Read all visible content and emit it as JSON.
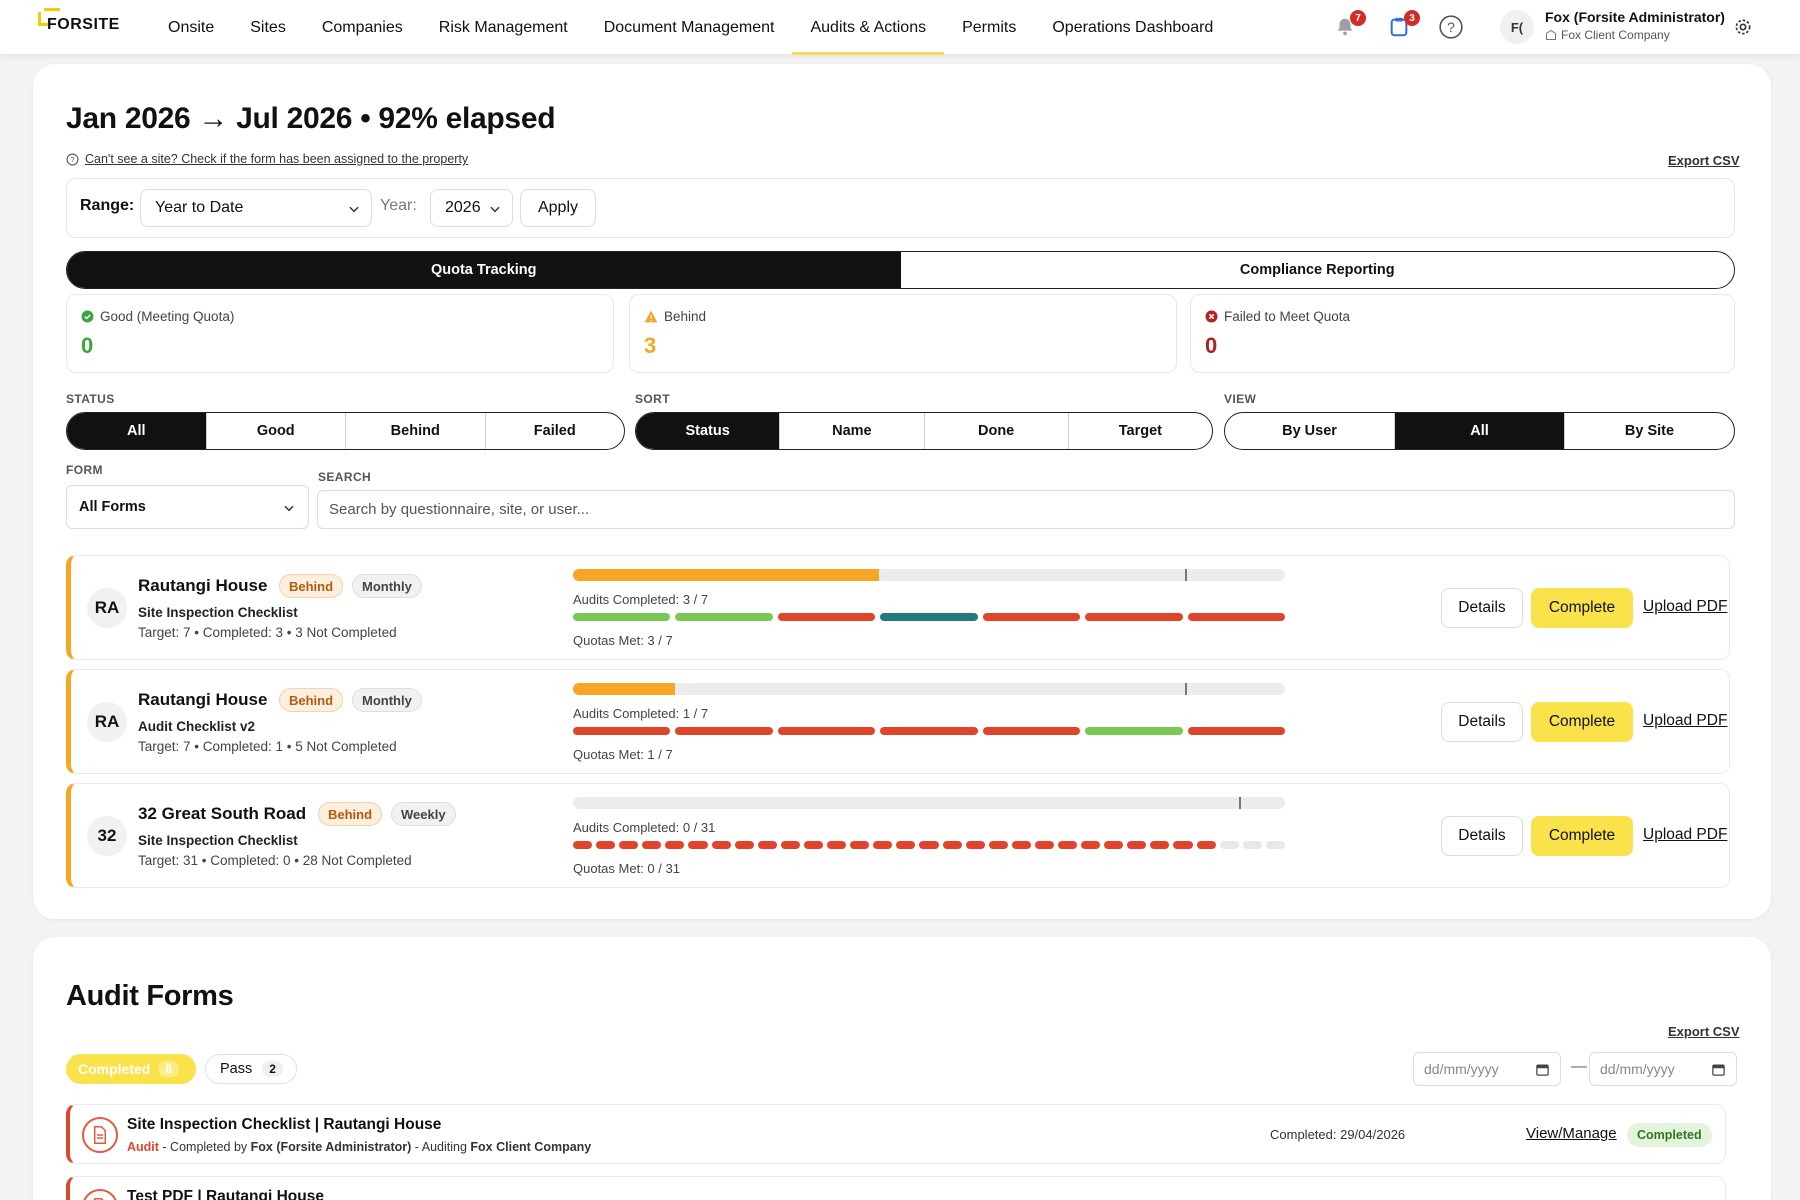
{
  "nav": {
    "logo": "FORSITE",
    "items": [
      "Onsite",
      "Sites",
      "Companies",
      "Risk Management",
      "Document Management",
      "Audits & Actions",
      "Permits",
      "Operations Dashboard"
    ],
    "active_item": "Audits & Actions",
    "notifications_count": "7",
    "messages_count": "3",
    "avatar_initials": "F(",
    "user_name": "Fox (Forsite Administrator)",
    "user_company": "Fox Client Company",
    "icons": [
      "bell-icon",
      "clipboard-icon",
      "help-icon",
      "settings-icon"
    ]
  },
  "quota": {
    "period_title": "Jan 2026 → Jul 2026 • 92% elapsed",
    "hint_text": "Can't see a site? Check if the form has been assigned to the property",
    "export_label": "Export CSV",
    "range_label": "Range:",
    "range_value": "Year to Date",
    "year_label": "Year:",
    "year_value": "2026",
    "apply_label": "Apply",
    "tabs": [
      "Quota Tracking",
      "Compliance Reporting"
    ],
    "active_tab": "Quota Tracking",
    "stats": [
      {
        "label": "Good (Meeting Quota)",
        "value": "0",
        "color": "#3aa53a"
      },
      {
        "label": "Behind",
        "value": "3",
        "color": "#f5a623"
      },
      {
        "label": "Failed to Meet Quota",
        "value": "0",
        "color": "#b3201f"
      }
    ],
    "status_label": "STATUS",
    "status_options": [
      "All",
      "Good",
      "Behind",
      "Failed"
    ],
    "status_active": "All",
    "sort_label": "SORT",
    "sort_options": [
      "Status",
      "Name",
      "Done",
      "Target"
    ],
    "sort_active": "Status",
    "view_label": "VIEW",
    "view_options": [
      "By User",
      "All",
      "By Site"
    ],
    "view_active": "All",
    "form_label": "FORM",
    "form_value": "All Forms",
    "search_label": "SEARCH",
    "search_placeholder": "Search by questionnaire, site, or user...",
    "rows": [
      {
        "initials": "RA",
        "site": "Rautangi House",
        "status": "Behind",
        "frequency": "Monthly",
        "form": "Site Inspection Checklist",
        "meta": "Target: 7 • Completed: 3 • 3 Not Completed",
        "audits_completed": "Audits Completed: 3 / 7",
        "quotas_met": "Quotas Met: 3 / 7",
        "progress": 0.43,
        "elapsed_marker": 0.86,
        "periods": [
          "good",
          "good",
          "failed",
          "teal",
          "failed",
          "failed",
          "failed"
        ]
      },
      {
        "initials": "RA",
        "site": "Rautangi House",
        "status": "Behind",
        "frequency": "Monthly",
        "form": "Audit Checklist v2",
        "meta": "Target: 7 • Completed: 1 • 5 Not Completed",
        "audits_completed": "Audits Completed: 1 / 7",
        "quotas_met": "Quotas Met: 1 / 7",
        "progress": 0.143,
        "elapsed_marker": 0.86,
        "periods": [
          "failed",
          "failed",
          "failed",
          "failed",
          "failed",
          "good",
          "failed"
        ]
      },
      {
        "initials": "32",
        "site": "32 Great South Road",
        "status": "Behind",
        "frequency": "Weekly",
        "form": "Site Inspection Checklist",
        "meta": "Target: 31 • Completed: 0 • 28 Not Completed",
        "audits_completed": "Audits Completed: 0 / 31",
        "quotas_met": "Quotas Met: 0 / 31",
        "progress": 0,
        "elapsed_marker": 0.935,
        "periods": [
          "failed",
          "failed",
          "failed",
          "failed",
          "failed",
          "failed",
          "failed",
          "failed",
          "failed",
          "failed",
          "failed",
          "failed",
          "failed",
          "failed",
          "failed",
          "failed",
          "failed",
          "failed",
          "failed",
          "failed",
          "failed",
          "failed",
          "failed",
          "failed",
          "failed",
          "failed",
          "failed",
          "failed",
          "empty",
          "empty",
          "empty"
        ]
      }
    ],
    "details_label": "Details",
    "complete_label": "Complete",
    "upload_label": "Upload PDF"
  },
  "audit_forms": {
    "title": "Audit Forms",
    "export_label": "Export CSV",
    "chip_completed": "Completed",
    "chip_completed_count": "8",
    "chip_pass": "Pass",
    "chip_pass_count": "2",
    "date_placeholder": "dd/mm/yyyy",
    "date_separator": "—",
    "rows": [
      {
        "title": "Site Inspection Checklist | Rautangi House",
        "type": "Audit",
        "by_prefix": " - Completed by ",
        "by": "Fox (Forsite Administrator)",
        "aud_prefix": " - Auditing ",
        "company": "Fox Client Company",
        "completed": "Completed: 29/04/2026",
        "view_label": "View/Manage",
        "status": "Completed"
      },
      {
        "title": "Test PDF | Rautangi House"
      }
    ]
  },
  "colors": {
    "accent_yellow": "#f9e24a",
    "behind_orange": "#f5a623",
    "failed_red": "#e0452b",
    "good_green": "#7ac756",
    "teal": "#237a78"
  }
}
